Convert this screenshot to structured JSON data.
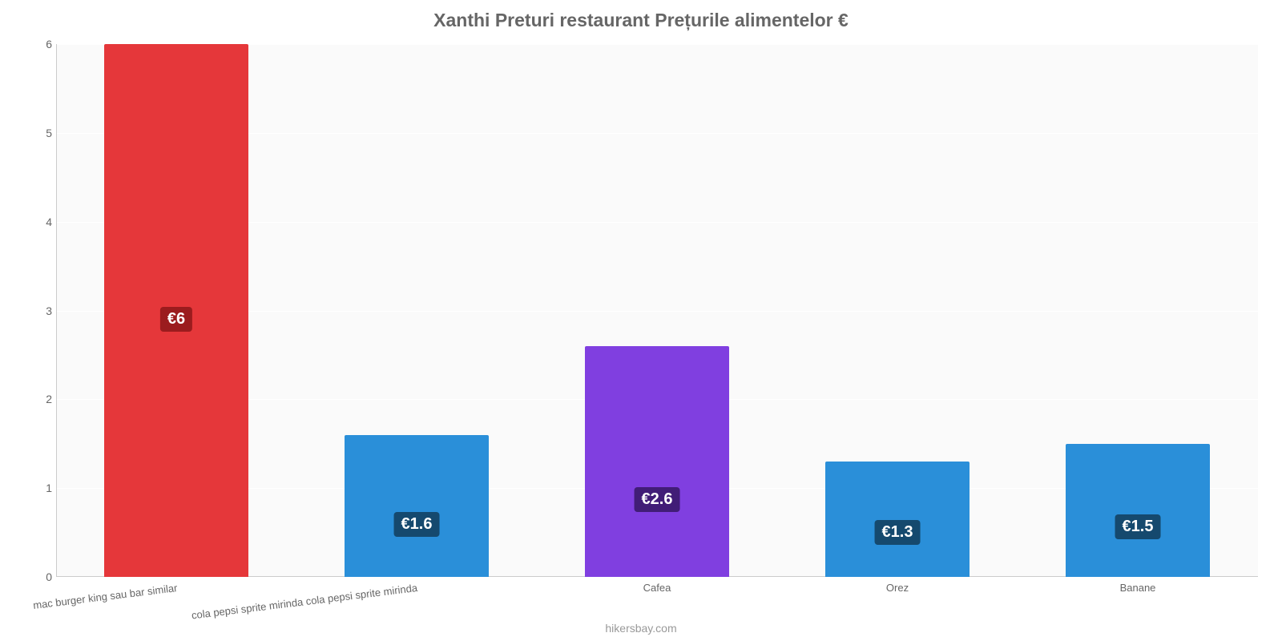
{
  "chart": {
    "type": "bar",
    "title": "Xanthi Preturi restaurant Prețurile alimentelor €",
    "title_color": "#666666",
    "title_fontsize": 23,
    "background_color": "#ffffff",
    "plot_background_color": "#fafafa",
    "grid_color": "#ffffff",
    "axis_line_color": "#cccccc",
    "y": {
      "min": 0,
      "max": 6,
      "ticks": [
        0,
        1,
        2,
        3,
        4,
        5,
        6
      ],
      "label_color": "#666666",
      "label_fontsize": 14
    },
    "bar_width_pct": 12,
    "categories": [
      {
        "label": "mac burger king sau bar similar",
        "value": 6.0,
        "display": "€6",
        "color": "#e5373a",
        "label_bg": "#9b1c1e",
        "rotated": true
      },
      {
        "label": "cola pepsi sprite mirinda cola pepsi sprite mirinda",
        "value": 1.6,
        "display": "€1.6",
        "color": "#2a8fd9",
        "label_bg": "#15496e",
        "rotated": true
      },
      {
        "label": "Cafea",
        "value": 2.6,
        "display": "€2.6",
        "color": "#803fe0",
        "label_bg": "#411d77",
        "rotated": false
      },
      {
        "label": "Orez",
        "value": 1.3,
        "display": "€1.3",
        "color": "#2a8fd9",
        "label_bg": "#15496e",
        "rotated": false
      },
      {
        "label": "Banane",
        "value": 1.5,
        "display": "€1.5",
        "color": "#2a8fd9",
        "label_bg": "#15496e",
        "rotated": false
      }
    ],
    "value_label_fontsize": 20,
    "value_label_color": "#ffffff",
    "x_label_color": "#666666",
    "x_label_fontsize": 13,
    "source": "hikersbay.com",
    "source_color": "#999999",
    "source_fontsize": 14
  }
}
